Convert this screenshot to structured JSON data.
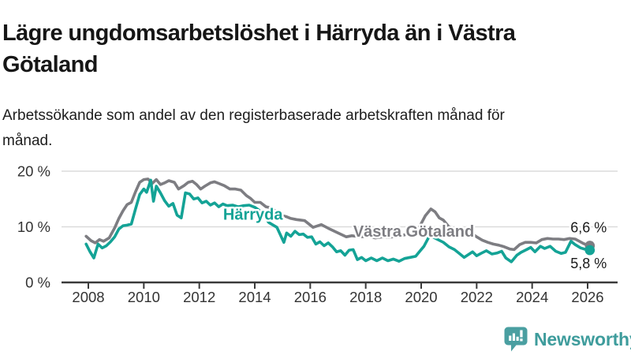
{
  "header": {
    "title": "Lägre ungdomsarbetslöshet i Härryda än i Västra Götaland",
    "subtitle": "Arbetssökande som andel av den registerbaserade arbetskraften månad för månad."
  },
  "footer": {
    "brand": "Newsworthy",
    "brand_color": "#3E9C9C",
    "logo_icon": "speech-bubble-bar-chart-icon"
  },
  "chart_data": {
    "type": "line",
    "unit": "%",
    "grid": "horizontal-only",
    "x_axis": {
      "ticks": [
        2008,
        2010,
        2012,
        2014,
        2016,
        2018,
        2020,
        2022,
        2024,
        2026
      ],
      "range": [
        2007.05,
        2027.08
      ]
    },
    "y_axis": {
      "ticks": [
        0,
        10,
        20
      ],
      "tick_labels": [
        "0 %",
        "10 %",
        "20 %"
      ],
      "range": [
        0,
        22.4
      ],
      "gridline_color": "#dbdbdb",
      "axis_color": "#3a3a3a",
      "label_color": "#333333"
    },
    "series": [
      {
        "name": "Västra Götaland",
        "color": "#7D7D82",
        "end_value": 6.6,
        "end_label": "6,6 %",
        "points": [
          [
            2007.92,
            8.3
          ],
          [
            2008.1,
            7.5
          ],
          [
            2008.25,
            7.1
          ],
          [
            2008.4,
            7.7
          ],
          [
            2008.55,
            7.4
          ],
          [
            2008.75,
            8.0
          ],
          [
            2008.95,
            9.8
          ],
          [
            2009.1,
            11.5
          ],
          [
            2009.25,
            12.9
          ],
          [
            2009.4,
            14.0
          ],
          [
            2009.55,
            14.4
          ],
          [
            2009.7,
            16.3
          ],
          [
            2009.85,
            18.0
          ],
          [
            2010.0,
            18.5
          ],
          [
            2010.15,
            18.6
          ],
          [
            2010.3,
            17.8
          ],
          [
            2010.45,
            18.5
          ],
          [
            2010.6,
            17.6
          ],
          [
            2010.75,
            17.9
          ],
          [
            2010.9,
            18.3
          ],
          [
            2011.1,
            18.0
          ],
          [
            2011.25,
            16.8
          ],
          [
            2011.45,
            17.4
          ],
          [
            2011.6,
            18.0
          ],
          [
            2011.75,
            18.2
          ],
          [
            2011.9,
            17.6
          ],
          [
            2012.05,
            16.8
          ],
          [
            2012.2,
            17.3
          ],
          [
            2012.4,
            17.9
          ],
          [
            2012.55,
            18.1
          ],
          [
            2012.7,
            17.8
          ],
          [
            2012.9,
            17.4
          ],
          [
            2013.1,
            16.8
          ],
          [
            2013.3,
            16.8
          ],
          [
            2013.5,
            16.6
          ],
          [
            2013.7,
            15.6
          ],
          [
            2013.85,
            15.1
          ],
          [
            2014.0,
            14.4
          ],
          [
            2014.2,
            14.4
          ],
          [
            2014.4,
            13.6
          ],
          [
            2014.6,
            13.4
          ],
          [
            2014.8,
            12.6
          ],
          [
            2015.0,
            12.0
          ],
          [
            2015.15,
            11.8
          ],
          [
            2015.3,
            11.5
          ],
          [
            2015.5,
            11.3
          ],
          [
            2015.8,
            11.1
          ],
          [
            2016.1,
            9.9
          ],
          [
            2016.4,
            10.4
          ],
          [
            2016.7,
            9.6
          ],
          [
            2017.0,
            8.9
          ],
          [
            2017.3,
            8.2
          ],
          [
            2017.5,
            8.4
          ],
          [
            2017.8,
            8.2
          ],
          [
            2018.1,
            8.3
          ],
          [
            2018.35,
            8.0
          ],
          [
            2018.6,
            8.2
          ],
          [
            2018.85,
            8.1
          ],
          [
            2019.1,
            8.3
          ],
          [
            2019.35,
            8.5
          ],
          [
            2019.6,
            8.8
          ],
          [
            2019.8,
            9.3
          ],
          [
            2019.95,
            10.1
          ],
          [
            2020.15,
            12.0
          ],
          [
            2020.35,
            13.2
          ],
          [
            2020.5,
            12.7
          ],
          [
            2020.65,
            11.6
          ],
          [
            2020.8,
            11.2
          ],
          [
            2021.0,
            10.0
          ],
          [
            2021.2,
            9.7
          ],
          [
            2021.4,
            9.5
          ],
          [
            2021.6,
            9.2
          ],
          [
            2021.8,
            8.9
          ],
          [
            2022.0,
            8.2
          ],
          [
            2022.2,
            7.6
          ],
          [
            2022.4,
            7.2
          ],
          [
            2022.6,
            6.9
          ],
          [
            2022.8,
            6.7
          ],
          [
            2023.0,
            6.4
          ],
          [
            2023.2,
            6.0
          ],
          [
            2023.35,
            5.9
          ],
          [
            2023.55,
            6.8
          ],
          [
            2023.75,
            7.2
          ],
          [
            2023.95,
            7.2
          ],
          [
            2024.15,
            7.1
          ],
          [
            2024.35,
            7.7
          ],
          [
            2024.55,
            7.9
          ],
          [
            2024.75,
            7.8
          ],
          [
            2024.95,
            7.8
          ],
          [
            2025.15,
            7.7
          ],
          [
            2025.35,
            7.9
          ],
          [
            2025.55,
            7.8
          ],
          [
            2025.7,
            7.4
          ],
          [
            2025.85,
            7.0
          ],
          [
            2026.0,
            6.7
          ],
          [
            2026.08,
            6.6
          ]
        ]
      },
      {
        "name": "Härryda",
        "color": "#14A396",
        "end_value": 5.8,
        "end_label": "5,8 %",
        "points": [
          [
            2007.92,
            6.9
          ],
          [
            2008.05,
            5.6
          ],
          [
            2008.2,
            4.4
          ],
          [
            2008.35,
            6.9
          ],
          [
            2008.5,
            6.2
          ],
          [
            2008.65,
            6.6
          ],
          [
            2008.8,
            7.3
          ],
          [
            2008.95,
            8.2
          ],
          [
            2009.1,
            9.6
          ],
          [
            2009.25,
            10.2
          ],
          [
            2009.4,
            10.3
          ],
          [
            2009.55,
            10.5
          ],
          [
            2009.7,
            13.2
          ],
          [
            2009.85,
            15.8
          ],
          [
            2010.0,
            16.8
          ],
          [
            2010.1,
            16.2
          ],
          [
            2010.25,
            18.4
          ],
          [
            2010.35,
            14.6
          ],
          [
            2010.45,
            17.3
          ],
          [
            2010.6,
            16.1
          ],
          [
            2010.75,
            14.7
          ],
          [
            2010.9,
            13.7
          ],
          [
            2011.05,
            14.2
          ],
          [
            2011.2,
            12.1
          ],
          [
            2011.35,
            11.6
          ],
          [
            2011.5,
            16.1
          ],
          [
            2011.65,
            15.9
          ],
          [
            2011.8,
            15.0
          ],
          [
            2011.95,
            15.2
          ],
          [
            2012.1,
            14.3
          ],
          [
            2012.25,
            14.6
          ],
          [
            2012.4,
            13.9
          ],
          [
            2012.55,
            14.3
          ],
          [
            2012.7,
            13.6
          ],
          [
            2012.85,
            14.1
          ],
          [
            2013.0,
            13.8
          ],
          [
            2013.2,
            13.9
          ],
          [
            2013.4,
            13.6
          ],
          [
            2013.6,
            13.8
          ],
          [
            2013.8,
            13.9
          ],
          [
            2014.0,
            13.5
          ],
          [
            2014.15,
            13.0
          ],
          [
            2014.3,
            12.3
          ],
          [
            2014.5,
            10.8
          ],
          [
            2014.8,
            9.9
          ],
          [
            2015.05,
            7.2
          ],
          [
            2015.15,
            8.9
          ],
          [
            2015.3,
            8.3
          ],
          [
            2015.45,
            9.2
          ],
          [
            2015.6,
            8.6
          ],
          [
            2015.75,
            8.7
          ],
          [
            2015.9,
            8.1
          ],
          [
            2016.05,
            8.2
          ],
          [
            2016.2,
            6.9
          ],
          [
            2016.35,
            7.3
          ],
          [
            2016.5,
            6.6
          ],
          [
            2016.65,
            7.1
          ],
          [
            2016.8,
            6.4
          ],
          [
            2016.95,
            5.5
          ],
          [
            2017.1,
            5.7
          ],
          [
            2017.25,
            4.9
          ],
          [
            2017.4,
            5.8
          ],
          [
            2017.55,
            5.9
          ],
          [
            2017.7,
            4.1
          ],
          [
            2017.85,
            4.5
          ],
          [
            2018.0,
            3.9
          ],
          [
            2018.2,
            4.4
          ],
          [
            2018.4,
            3.9
          ],
          [
            2018.6,
            4.4
          ],
          [
            2018.8,
            3.9
          ],
          [
            2019.0,
            4.2
          ],
          [
            2019.2,
            3.8
          ],
          [
            2019.4,
            4.3
          ],
          [
            2019.6,
            4.5
          ],
          [
            2019.8,
            4.7
          ],
          [
            2019.95,
            5.6
          ],
          [
            2020.1,
            6.5
          ],
          [
            2020.3,
            8.4
          ],
          [
            2020.45,
            8.1
          ],
          [
            2020.6,
            7.7
          ],
          [
            2020.8,
            7.2
          ],
          [
            2021.0,
            6.4
          ],
          [
            2021.2,
            5.9
          ],
          [
            2021.4,
            5.1
          ],
          [
            2021.55,
            4.5
          ],
          [
            2021.7,
            5.0
          ],
          [
            2021.85,
            5.5
          ],
          [
            2022.0,
            4.8
          ],
          [
            2022.15,
            5.2
          ],
          [
            2022.35,
            5.7
          ],
          [
            2022.55,
            5.1
          ],
          [
            2022.75,
            5.3
          ],
          [
            2022.9,
            5.6
          ],
          [
            2023.05,
            4.4
          ],
          [
            2023.25,
            3.7
          ],
          [
            2023.45,
            4.9
          ],
          [
            2023.6,
            5.4
          ],
          [
            2023.8,
            5.9
          ],
          [
            2023.95,
            6.3
          ],
          [
            2024.1,
            5.5
          ],
          [
            2024.3,
            6.5
          ],
          [
            2024.45,
            6.1
          ],
          [
            2024.65,
            6.5
          ],
          [
            2024.85,
            5.6
          ],
          [
            2025.05,
            5.2
          ],
          [
            2025.2,
            5.4
          ],
          [
            2025.4,
            7.4
          ],
          [
            2025.55,
            6.8
          ],
          [
            2025.75,
            6.2
          ],
          [
            2025.95,
            5.9
          ],
          [
            2026.08,
            5.8
          ]
        ]
      }
    ],
    "annotations": [
      {
        "text": "Härryda",
        "year": 2012.86,
        "value": 11.3,
        "color": "#14A396",
        "size": 20,
        "bold": true
      },
      {
        "text": "Västra Götaland",
        "year": 2017.55,
        "value": 8.25,
        "color": "#7D7D82",
        "size": 20,
        "bold": true
      },
      {
        "text": "6,6 %",
        "year": 2025.38,
        "value": 9.0,
        "color": "#1a1a1a",
        "size": 18,
        "bold": false
      },
      {
        "text": "5,8 %",
        "year": 2025.38,
        "value": 2.55,
        "color": "#1a1a1a",
        "size": 18,
        "bold": false
      }
    ]
  }
}
